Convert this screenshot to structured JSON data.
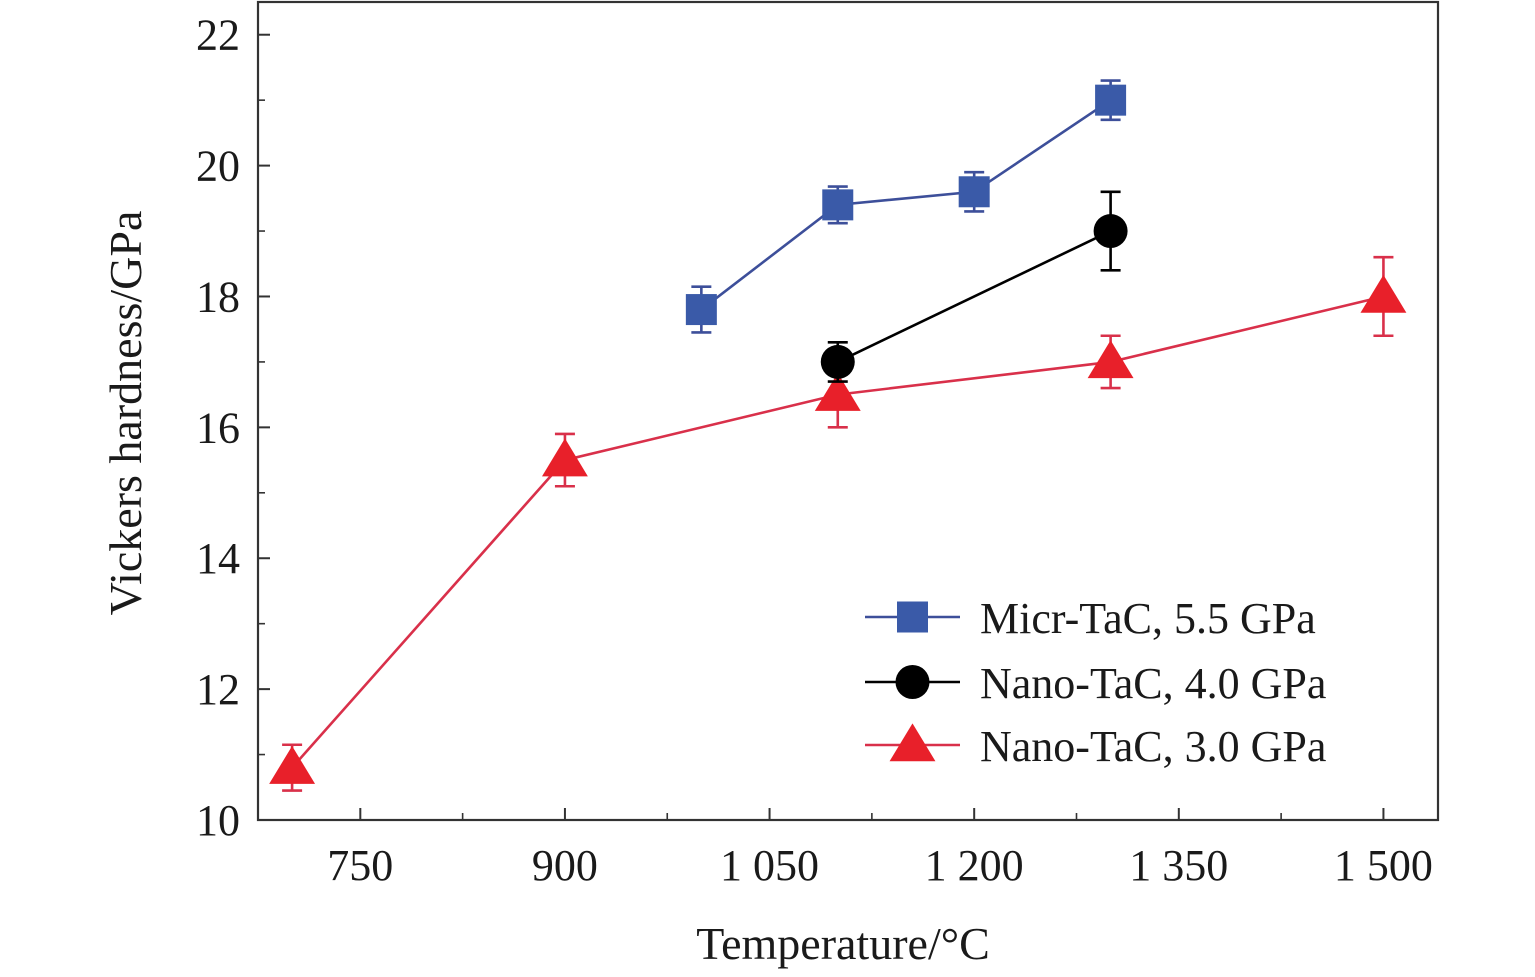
{
  "chart_data": {
    "type": "line",
    "title": "",
    "xlabel": "Temperature/°C",
    "ylabel": "Vickers hardness/GPa",
    "xlim": [
      675,
      1540
    ],
    "ylim": [
      10,
      22.5
    ],
    "xticks": [
      750,
      900,
      1050,
      1200,
      1350,
      1500
    ],
    "xtick_labels": [
      "750",
      "900",
      "1 050",
      "1 200",
      "1 350",
      "1 500"
    ],
    "yticks": [
      10,
      12,
      14,
      16,
      18,
      20,
      22
    ],
    "ytick_labels": [
      "10",
      "12",
      "14",
      "16",
      "18",
      "20",
      "22"
    ],
    "grid": false,
    "legend_position": "bottom-right",
    "series": [
      {
        "name": "Micr-TaC, 5.5 GPa",
        "color": "#3a5aa8",
        "line_color": "#3d4f9a",
        "marker": "square",
        "x": [
          1000,
          1100,
          1200,
          1300
        ],
        "y": [
          17.8,
          19.4,
          19.6,
          21.0
        ],
        "error": [
          0.35,
          0.28,
          0.3,
          0.3
        ]
      },
      {
        "name": "Nano-TaC, 4.0 GPa",
        "color": "#000000",
        "line_color": "#000000",
        "marker": "circle",
        "x": [
          1100,
          1300
        ],
        "y": [
          17.0,
          19.0
        ],
        "error": [
          0.3,
          0.6
        ]
      },
      {
        "name": "Nano-TaC, 3.0 GPa",
        "color": "#e8202a",
        "line_color": "#d9304a",
        "marker": "triangle",
        "x": [
          700,
          900,
          1100,
          1300,
          1500
        ],
        "y": [
          10.8,
          15.5,
          16.5,
          17.0,
          18.0
        ],
        "error": [
          0.35,
          0.4,
          0.5,
          0.4,
          0.6
        ]
      }
    ]
  }
}
